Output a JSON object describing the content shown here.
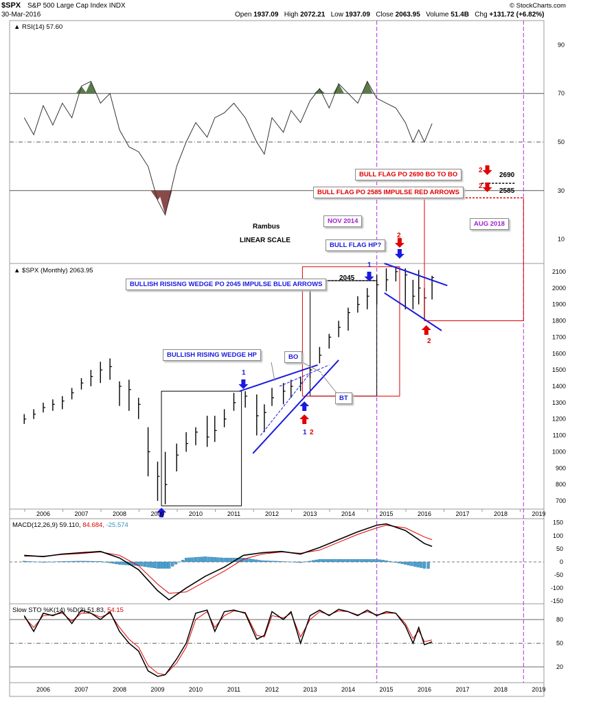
{
  "header": {
    "symbol": "$SPX",
    "name": "S&P 500 Large Cap Index",
    "exchange": "INDX",
    "date": "30-Mar-2016",
    "open_label": "Open",
    "open": "1937.09",
    "high_label": "High",
    "high": "2072.21",
    "low_label": "Low",
    "low": "1937.09",
    "close_label": "Close",
    "close": "2063.95",
    "volume_label": "Volume",
    "volume": "51.4B",
    "chg_label": "Chg",
    "chg": "+131.72 (+6.82%)",
    "brand": "© StockCharts.com"
  },
  "panels": {
    "rsi_label": "RSI(14) 57.60",
    "price_label": "$SPX (Monthly) 2063.95",
    "macd_label_prefix": "MACD(12,26,9) 59.110, ",
    "macd_signal_val": "84.684, ",
    "macd_hist_val": "-25.574",
    "sto_label_prefix": "Slow STO %K(14) %D(3) 51.83, ",
    "sto_d_val": "54.15"
  },
  "annotations": {
    "rambus": "Rambus",
    "linear": "LINEAR SCALE",
    "nov2014": "NOV 2014",
    "aug2018": "AUG 2018",
    "bull_flag_hp": "BULL FLAG HP?",
    "bull_flag_2690": "BULL FLAG PO 2690 BO TO BO",
    "bull_flag_2585": "BULL FLAG PO 2585 IMPULSE RED ARROWS",
    "wedge_po": "BULLISH RISISNG WEDGE PO 2045 IMPULSE BLUE ARROWS",
    "wedge_hp": "BULLISH RISING WEDGE HP",
    "bo": "BO",
    "bt": "BT",
    "lvl_2690": "2690",
    "lvl_2585": "2585",
    "lvl_2045": "2045",
    "num_1": "1",
    "num_2": "2"
  },
  "colors": {
    "blue": "#1a1adf",
    "red": "#e00000",
    "purple": "#b030e0",
    "rsi_green": "#5a7a4a",
    "rsi_red": "#8a4a4a",
    "macd_hist": "#4aa0d0"
  },
  "chart_data": [
    {
      "type": "line",
      "panel": "RSI",
      "title": "RSI(14) 57.60",
      "yticks": [
        10,
        30,
        50,
        70,
        90
      ],
      "ylim": [
        0,
        100
      ],
      "reference_lines": [
        30,
        50,
        70
      ],
      "x": [
        2005.5,
        2005.75,
        2006.0,
        2006.25,
        2006.5,
        2006.75,
        2007.0,
        2007.25,
        2007.5,
        2007.75,
        2008.0,
        2008.25,
        2008.5,
        2008.75,
        2009.0,
        2009.2,
        2009.5,
        2009.75,
        2010.0,
        2010.3,
        2010.5,
        2010.75,
        2011.0,
        2011.3,
        2011.6,
        2011.8,
        2012.0,
        2012.3,
        2012.5,
        2012.75,
        2013.0,
        2013.25,
        2013.5,
        2013.75,
        2014.0,
        2014.25,
        2014.5,
        2014.75,
        2015.0,
        2015.25,
        2015.5,
        2015.7,
        2015.85,
        2016.0,
        2016.2
      ],
      "values": [
        60,
        53,
        65,
        57,
        66,
        60,
        73,
        75,
        66,
        70,
        55,
        48,
        46,
        40,
        26,
        20,
        40,
        50,
        58,
        52,
        60,
        62,
        66,
        60,
        50,
        45,
        60,
        54,
        63,
        58,
        67,
        72,
        64,
        74,
        70,
        66,
        75,
        68,
        66,
        64,
        58,
        50,
        55,
        50,
        57.6
      ]
    },
    {
      "type": "bar",
      "panel": "Price",
      "title": "$SPX (Monthly) 2063.95",
      "xlabel": "",
      "ylabel": "",
      "x_ticks": [
        "2006",
        "2007",
        "2008",
        "2009",
        "2010",
        "2011",
        "2012",
        "2013",
        "2014",
        "2015",
        "2016",
        "2017",
        "2018",
        "2019"
      ],
      "yticks": [
        700,
        800,
        900,
        1000,
        1100,
        1200,
        1300,
        1400,
        1500,
        1600,
        1700,
        1800,
        1900,
        2000,
        2100
      ],
      "ylim": [
        650,
        2150
      ],
      "x": [
        2005.5,
        2005.75,
        2006.0,
        2006.25,
        2006.5,
        2006.75,
        2007.0,
        2007.25,
        2007.5,
        2007.75,
        2008.0,
        2008.25,
        2008.5,
        2008.75,
        2009.0,
        2009.2,
        2009.5,
        2009.75,
        2010.0,
        2010.3,
        2010.5,
        2010.75,
        2011.0,
        2011.3,
        2011.6,
        2011.8,
        2012.0,
        2012.3,
        2012.5,
        2012.75,
        2013.0,
        2013.25,
        2013.5,
        2013.75,
        2014.0,
        2014.25,
        2014.5,
        2014.75,
        2015.0,
        2015.25,
        2015.5,
        2015.7,
        2015.85,
        2016.0,
        2016.2
      ],
      "values": [
        1200,
        1230,
        1270,
        1290,
        1310,
        1360,
        1420,
        1460,
        1500,
        1520,
        1400,
        1380,
        1290,
        1000,
        850,
        800,
        980,
        1050,
        1120,
        1090,
        1130,
        1200,
        1300,
        1340,
        1220,
        1240,
        1330,
        1370,
        1400,
        1420,
        1500,
        1590,
        1700,
        1760,
        1850,
        1900,
        1950,
        2020,
        2050,
        2100,
        2080,
        1950,
        2000,
        1940,
        2064
      ],
      "lows": [
        1170,
        1200,
        1240,
        1250,
        1260,
        1320,
        1380,
        1400,
        1420,
        1440,
        1280,
        1250,
        1200,
        850,
        700,
        680,
        880,
        1000,
        1040,
        1030,
        1060,
        1150,
        1250,
        1270,
        1100,
        1120,
        1280,
        1290,
        1330,
        1370,
        1450,
        1540,
        1630,
        1700,
        1740,
        1850,
        1870,
        1900,
        1980,
        2040,
        1870,
        1870,
        1900,
        1810,
        1930
      ],
      "highs": [
        1230,
        1260,
        1300,
        1320,
        1340,
        1390,
        1450,
        1500,
        1550,
        1570,
        1430,
        1440,
        1330,
        1150,
        940,
        1000,
        1050,
        1120,
        1150,
        1220,
        1220,
        1260,
        1360,
        1370,
        1350,
        1290,
        1390,
        1420,
        1440,
        1460,
        1530,
        1640,
        1720,
        1800,
        1880,
        1950,
        2000,
        2080,
        2120,
        2130,
        2120,
        2050,
        2110,
        2000,
        2075
      ]
    },
    {
      "type": "line",
      "panel": "MACD",
      "title": "MACD(12,26,9) 59.110, 84.684, -25.574",
      "yticks": [
        150,
        100,
        50,
        0,
        -50,
        -100,
        -150
      ],
      "ylim": [
        -160,
        165
      ],
      "x": [
        2005.5,
        2006.0,
        2006.5,
        2007.0,
        2007.5,
        2008.0,
        2008.5,
        2009.0,
        2009.3,
        2009.75,
        2010.25,
        2010.75,
        2011.25,
        2011.75,
        2012.25,
        2012.75,
        2013.25,
        2013.75,
        2014.25,
        2014.75,
        2015.0,
        2015.5,
        2016.0,
        2016.2
      ],
      "series": [
        {
          "name": "MACD",
          "values": [
            25,
            20,
            30,
            35,
            40,
            15,
            -30,
            -110,
            -145,
            -100,
            -55,
            -20,
            25,
            35,
            40,
            30,
            55,
            85,
            115,
            140,
            145,
            120,
            70,
            59.1
          ]
        },
        {
          "name": "Signal",
          "values": [
            22,
            22,
            28,
            32,
            38,
            25,
            -15,
            -85,
            -120,
            -115,
            -75,
            -35,
            10,
            30,
            38,
            33,
            45,
            75,
            105,
            130,
            140,
            130,
            95,
            84.7
          ]
        }
      ],
      "histogram": [
        3,
        -2,
        2,
        3,
        2,
        -10,
        -15,
        -25,
        -25,
        15,
        20,
        15,
        15,
        5,
        2,
        -3,
        10,
        10,
        10,
        10,
        5,
        -10,
        -25,
        -25.6
      ]
    },
    {
      "type": "line",
      "panel": "Slow STO",
      "title": "Slow STO %K(14) %D(3) 51.83, 54.15",
      "yticks": [
        80,
        50,
        20
      ],
      "ylim": [
        0,
        100
      ],
      "x": [
        2005.5,
        2005.75,
        2006.0,
        2006.25,
        2006.5,
        2006.75,
        2007.0,
        2007.25,
        2007.5,
        2007.75,
        2008.0,
        2008.25,
        2008.5,
        2008.75,
        2009.0,
        2009.2,
        2009.5,
        2009.75,
        2010.0,
        2010.3,
        2010.5,
        2010.75,
        2011.0,
        2011.3,
        2011.6,
        2011.8,
        2012.0,
        2012.3,
        2012.5,
        2012.75,
        2013.0,
        2013.25,
        2013.5,
        2013.75,
        2014.0,
        2014.25,
        2014.5,
        2014.75,
        2015.0,
        2015.25,
        2015.5,
        2015.7,
        2015.85,
        2016.0,
        2016.2
      ],
      "series": [
        {
          "name": "%K",
          "values": [
            85,
            65,
            88,
            85,
            90,
            75,
            92,
            88,
            80,
            90,
            65,
            50,
            40,
            15,
            8,
            10,
            30,
            50,
            88,
            92,
            65,
            90,
            92,
            88,
            55,
            60,
            90,
            80,
            90,
            50,
            85,
            92,
            85,
            93,
            90,
            85,
            92,
            85,
            90,
            88,
            72,
            50,
            70,
            48,
            51.83
          ]
        },
        {
          "name": "%D",
          "values": [
            83,
            70,
            85,
            86,
            88,
            78,
            88,
            88,
            83,
            88,
            70,
            55,
            45,
            22,
            12,
            10,
            25,
            45,
            80,
            90,
            70,
            85,
            91,
            89,
            60,
            58,
            85,
            82,
            88,
            58,
            80,
            90,
            86,
            91,
            90,
            86,
            90,
            86,
            88,
            88,
            75,
            56,
            66,
            52,
            54.15
          ]
        }
      ]
    }
  ]
}
